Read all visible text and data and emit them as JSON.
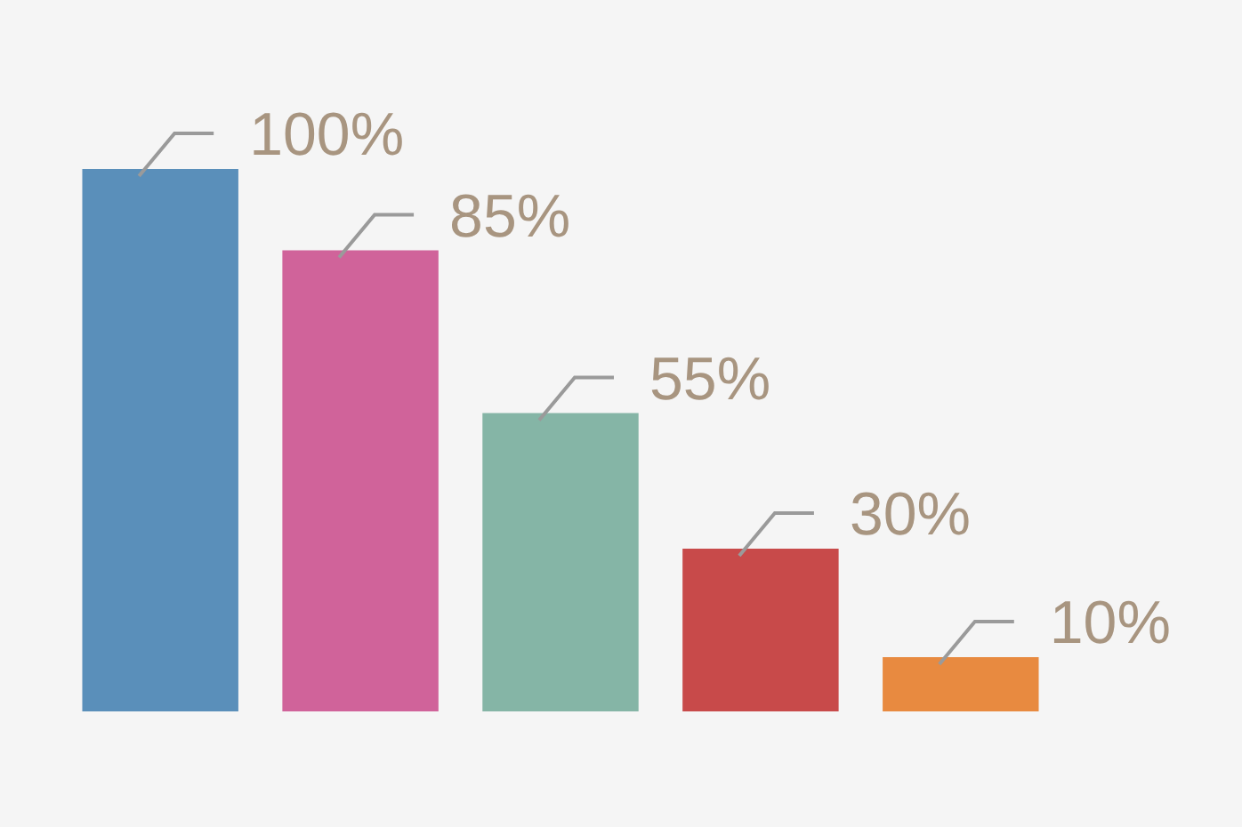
{
  "chart_data": {
    "type": "bar",
    "categories": [
      null,
      null,
      null,
      null,
      null
    ],
    "values": [
      100,
      85,
      55,
      30,
      10
    ],
    "colors": [
      "#5a8fba",
      "#d0639a",
      "#85b5a6",
      "#c84a4a",
      "#e88a40"
    ],
    "value_labels": [
      "100%",
      "85%",
      "55%",
      "30%",
      "10%"
    ]
  }
}
